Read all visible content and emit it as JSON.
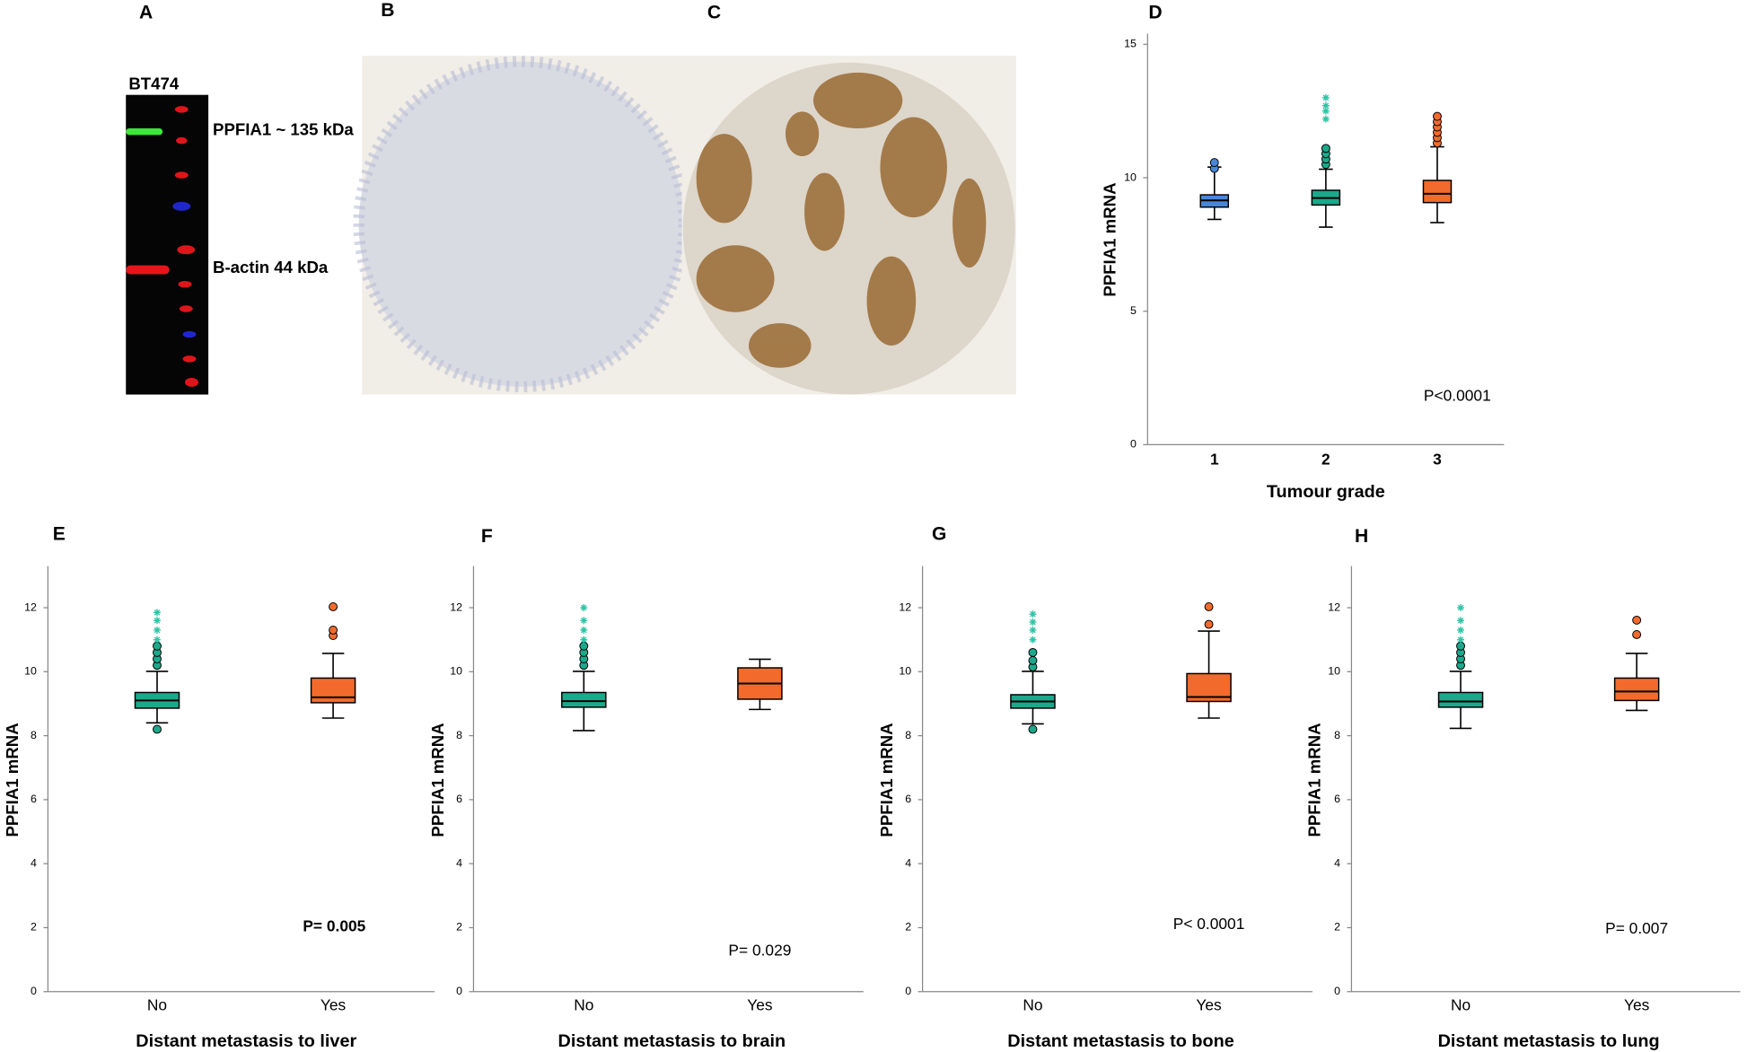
{
  "figure": {
    "blot": {
      "panel": "A",
      "cell_line": "BT474",
      "bands": [
        "PPFIA1 ~ 135 kDa",
        "B-actin 44 kDa"
      ]
    },
    "ihc": [
      {
        "panel": "B"
      },
      {
        "panel": "C"
      }
    ]
  },
  "chart_data": [
    {
      "type": "box",
      "panel": "D",
      "ylabel": "PPFIA1 mRNA",
      "xlabel": "Tumour grade",
      "annotation": "P<0.0001",
      "categories": [
        "1",
        "2",
        "3"
      ],
      "colors": [
        "#4a86d6",
        "#1aa98b",
        "#f26b2c"
      ],
      "outlier_color": "#2ec4a6",
      "boxes": [
        {
          "whislo": 8.44,
          "q1": 8.9,
          "med": 9.15,
          "q3": 9.36,
          "whishi": 10.4,
          "outliers": [
            10.35,
            10.57
          ],
          "extremes": []
        },
        {
          "whislo": 8.15,
          "q1": 8.98,
          "med": 9.24,
          "q3": 9.53,
          "whishi": 10.32,
          "outliers": [
            10.5,
            10.7,
            10.9,
            11.1
          ],
          "extremes": [
            12.2,
            12.5,
            12.7,
            13.0
          ]
        },
        {
          "whislo": 8.32,
          "q1": 9.07,
          "med": 9.4,
          "q3": 9.9,
          "whishi": 11.16,
          "outliers": [
            11.3,
            11.5,
            11.7,
            11.9,
            12.1,
            12.3
          ],
          "extremes": []
        }
      ],
      "ylim": [
        0,
        15.4
      ],
      "yticks": [
        0,
        5,
        10,
        15
      ]
    },
    {
      "type": "box",
      "panel": "E",
      "ylabel": "PPFIA1 mRNA",
      "xlabel": "Distant metastasis to liver",
      "annotation": "P= 0.005",
      "categories": [
        "No",
        "Yes"
      ],
      "colors": [
        "#1aa98b",
        "#f26b2c"
      ],
      "outlier_color": "#2ec4a6",
      "boxes": [
        {
          "whislo": 8.4,
          "q1": 8.86,
          "med": 9.1,
          "q3": 9.35,
          "whishi": 10.01,
          "outliers": [
            8.2,
            10.2,
            10.4,
            10.6,
            10.8
          ],
          "extremes": [
            11.0,
            11.3,
            11.6,
            11.85
          ]
        },
        {
          "whislo": 8.55,
          "q1": 9.03,
          "med": 9.2,
          "q3": 9.8,
          "whishi": 10.57,
          "outliers": [
            11.13,
            11.3,
            12.03
          ],
          "extremes": []
        }
      ],
      "ylim": [
        0,
        13.3
      ],
      "yticks": [
        0,
        2,
        4,
        6,
        8,
        10,
        12
      ]
    },
    {
      "type": "box",
      "panel": "F",
      "ylabel": "PPFIA1 mRNA",
      "xlabel": "Distant metastasis to brain",
      "annotation": "P= 0.029",
      "categories": [
        "No",
        "Yes"
      ],
      "colors": [
        "#1aa98b",
        "#f26b2c"
      ],
      "outlier_color": "#2ec4a6",
      "boxes": [
        {
          "whislo": 8.16,
          "q1": 8.89,
          "med": 9.08,
          "q3": 9.35,
          "whishi": 10.01,
          "outliers": [
            10.2,
            10.4,
            10.6,
            10.8
          ],
          "extremes": [
            11.0,
            11.3,
            11.6,
            12.0
          ]
        },
        {
          "whislo": 8.82,
          "q1": 9.14,
          "med": 9.63,
          "q3": 10.12,
          "whishi": 10.39,
          "outliers": [],
          "extremes": []
        }
      ],
      "ylim": [
        0,
        13.3
      ],
      "yticks": [
        0,
        2,
        4,
        6,
        8,
        10,
        12
      ]
    },
    {
      "type": "box",
      "panel": "G",
      "ylabel": "PPFIA1 mRNA",
      "xlabel": "Distant metastasis to bone",
      "annotation": "P< 0.0001",
      "categories": [
        "No",
        "Yes"
      ],
      "colors": [
        "#1aa98b",
        "#f26b2c"
      ],
      "outlier_color": "#2ec4a6",
      "boxes": [
        {
          "whislo": 8.37,
          "q1": 8.86,
          "med": 9.07,
          "q3": 9.28,
          "whishi": 10.01,
          "outliers": [
            8.2,
            10.15,
            10.35,
            10.6
          ],
          "extremes": [
            11.0,
            11.3,
            11.55,
            11.8
          ]
        },
        {
          "whislo": 8.55,
          "q1": 9.07,
          "med": 9.21,
          "q3": 9.94,
          "whishi": 11.27,
          "outliers": [
            11.48,
            12.03
          ],
          "extremes": []
        }
      ],
      "ylim": [
        0,
        13.3
      ],
      "yticks": [
        0,
        2,
        4,
        6,
        8,
        10,
        12
      ]
    },
    {
      "type": "box",
      "panel": "H",
      "ylabel": "PPFIA1 mRNA",
      "xlabel": "Distant metastasis to lung",
      "annotation": "P= 0.007",
      "categories": [
        "No",
        "Yes"
      ],
      "colors": [
        "#1aa98b",
        "#f26b2c"
      ],
      "outlier_color": "#2ec4a6",
      "boxes": [
        {
          "whislo": 8.23,
          "q1": 8.89,
          "med": 9.07,
          "q3": 9.35,
          "whishi": 10.01,
          "outliers": [
            10.2,
            10.4,
            10.6,
            10.8
          ],
          "extremes": [
            11.0,
            11.3,
            11.6,
            12.0
          ]
        },
        {
          "whislo": 8.79,
          "q1": 9.1,
          "med": 9.38,
          "q3": 9.8,
          "whishi": 10.57,
          "outliers": [
            11.16,
            11.61
          ],
          "extremes": []
        }
      ],
      "ylim": [
        0,
        13.3
      ],
      "yticks": [
        0,
        2,
        4,
        6,
        8,
        10,
        12
      ]
    }
  ]
}
